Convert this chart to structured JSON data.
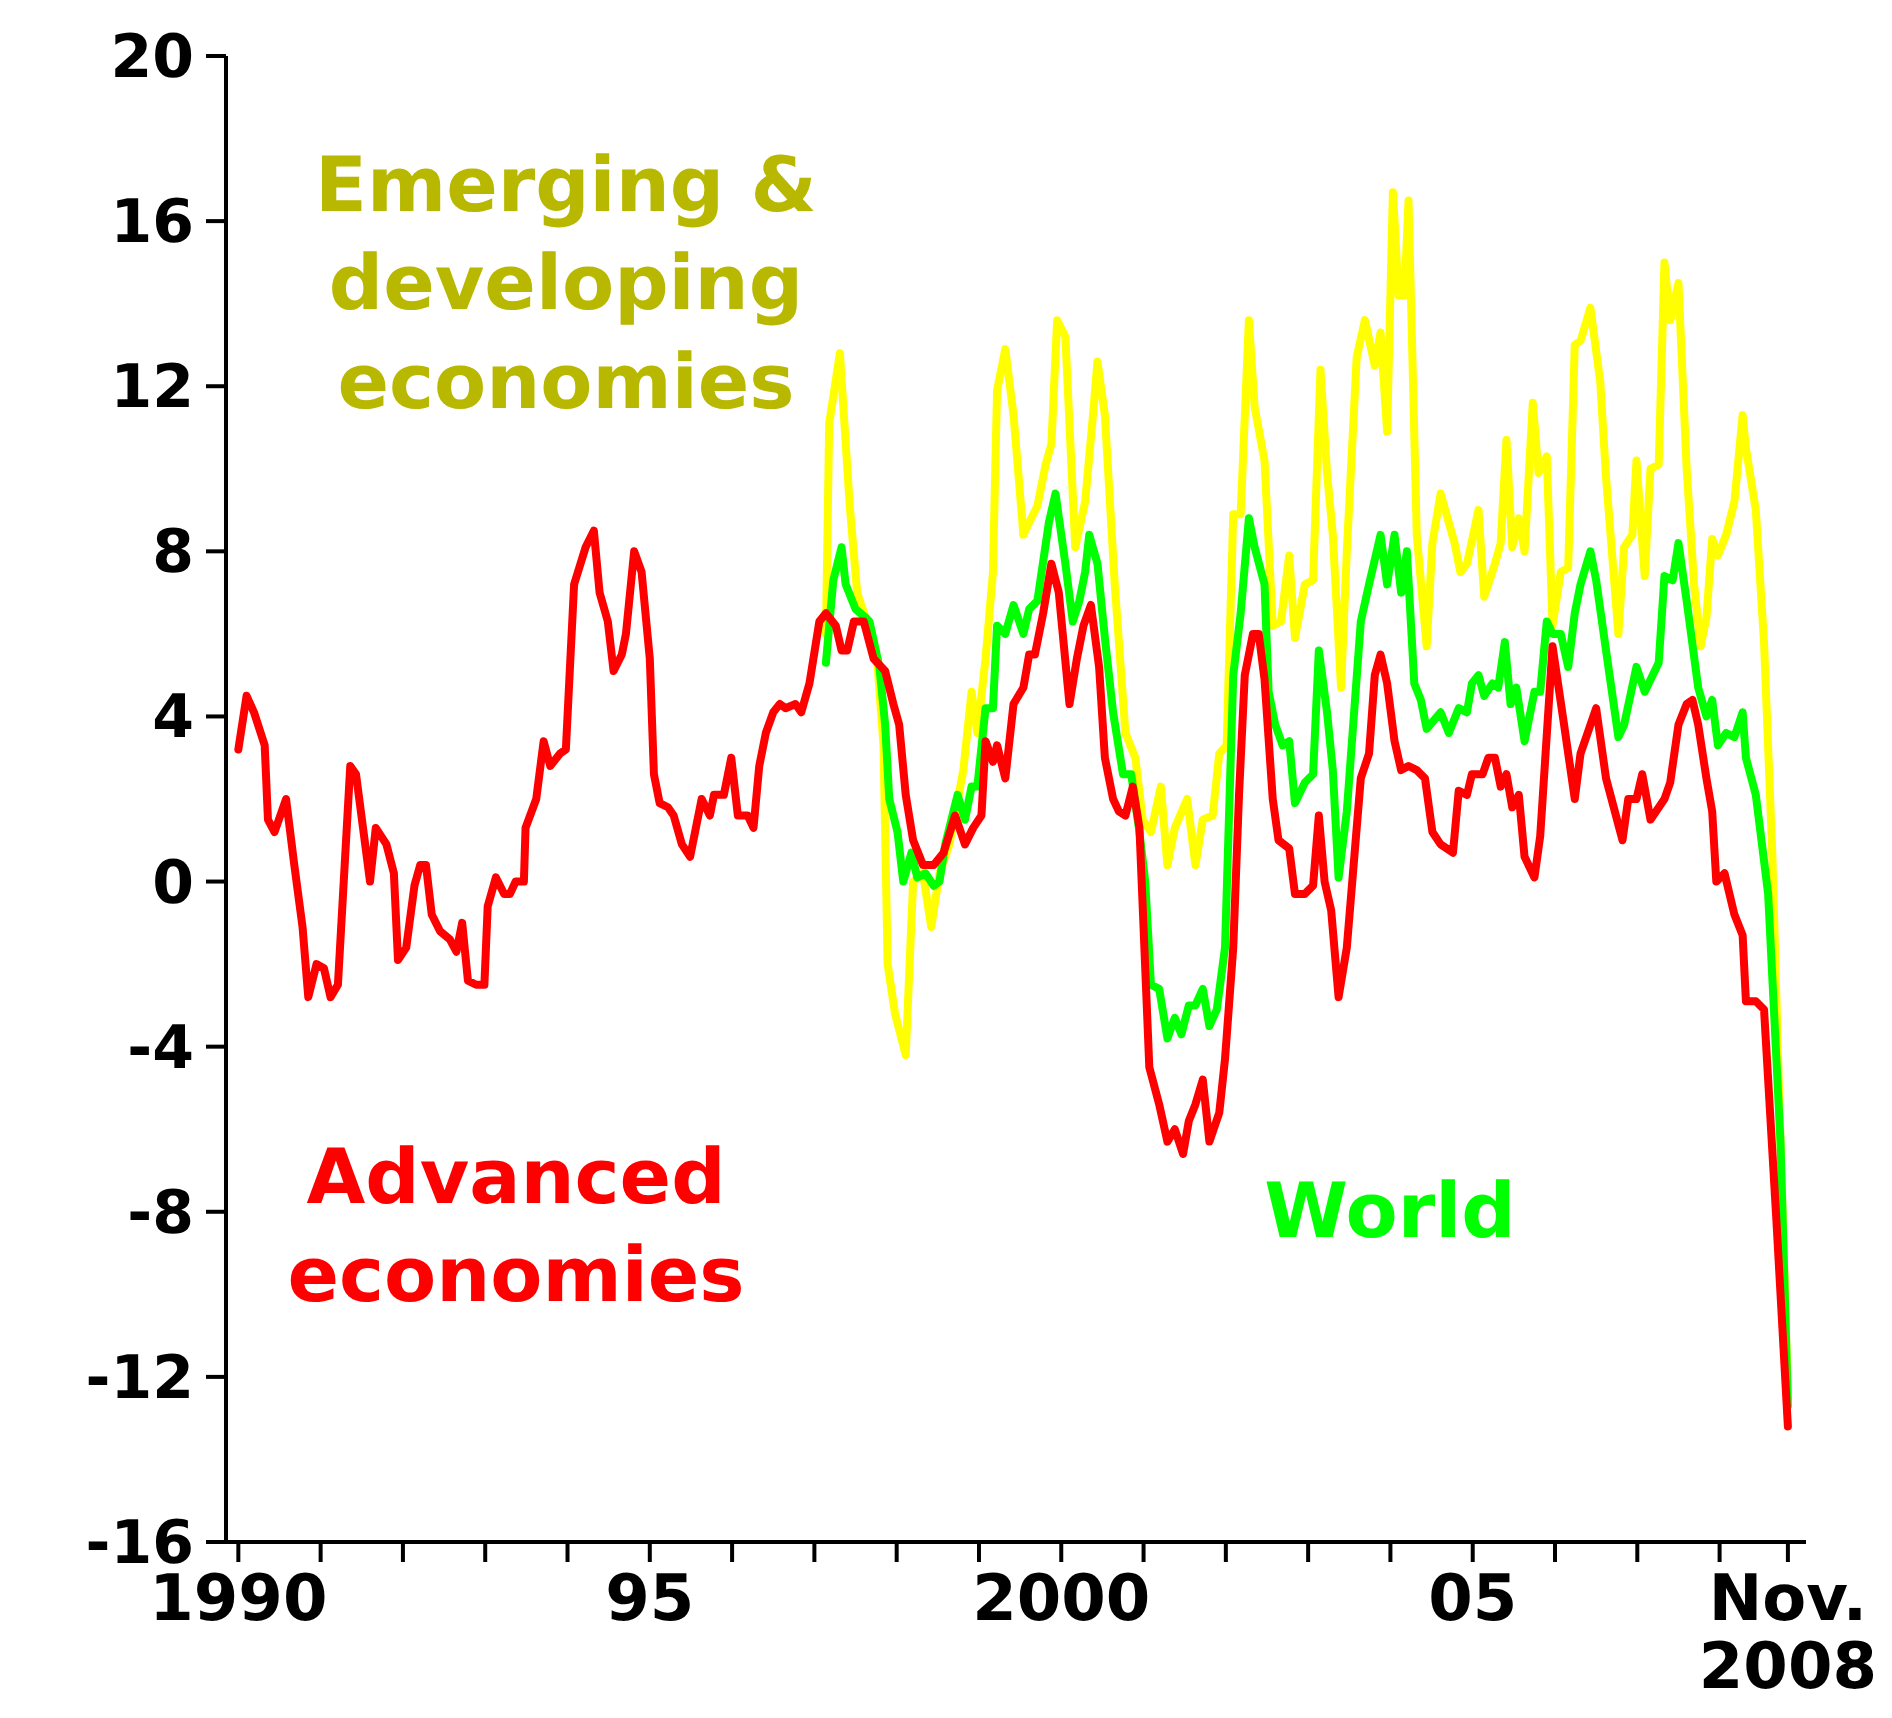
{
  "chart_data": {
    "type": "line",
    "ylim": [
      -16,
      20
    ],
    "yticks": [
      -16,
      -12,
      -8,
      -4,
      0,
      4,
      8,
      12,
      16,
      20
    ],
    "xlim": [
      1989.85,
      2009.05
    ],
    "xticks": [
      {
        "value": 1990,
        "label": "1990"
      },
      {
        "value": 1991,
        "label": null
      },
      {
        "value": 1992,
        "label": null
      },
      {
        "value": 1993,
        "label": null
      },
      {
        "value": 1994,
        "label": null
      },
      {
        "value": 1995,
        "label": "95"
      },
      {
        "value": 1996,
        "label": null
      },
      {
        "value": 1997,
        "label": null
      },
      {
        "value": 1998,
        "label": null
      },
      {
        "value": 1999,
        "label": null
      },
      {
        "value": 2000,
        "label": "2000"
      },
      {
        "value": 2001,
        "label": null
      },
      {
        "value": 2002,
        "label": null
      },
      {
        "value": 2003,
        "label": null
      },
      {
        "value": 2004,
        "label": null
      },
      {
        "value": 2005,
        "label": "05"
      },
      {
        "value": 2006,
        "label": null
      },
      {
        "value": 2007,
        "label": null
      },
      {
        "value": 2008,
        "label": null
      },
      {
        "value": 2008.83,
        "label": "Nov.\n2008"
      }
    ],
    "series": [
      {
        "name": "Emerging & developing economies",
        "color": "#ffff00",
        "x": [
          1997.14,
          1997.18,
          1997.31,
          1997.43,
          1997.52,
          1997.62,
          1997.77,
          1997.84,
          1997.89,
          1997.98,
          1998.11,
          1998.2,
          1998.32,
          1998.42,
          1998.52,
          1998.64,
          1998.81,
          1998.91,
          1998.98,
          1999.08,
          1999.17,
          1999.22,
          1999.32,
          1999.42,
          1999.54,
          1999.61,
          1999.71,
          1999.81,
          1999.88,
          1999.95,
          2000.05,
          2000.17,
          2000.29,
          2000.39,
          2000.44,
          2000.53,
          2000.65,
          2000.78,
          2000.9,
          2000.99,
          2001.09,
          2001.21,
          2001.29,
          2001.38,
          2001.53,
          2001.63,
          2001.72,
          2001.84,
          2001.92,
          2002.01,
          2002.09,
          2002.18,
          2002.28,
          2002.35,
          2002.47,
          2002.57,
          2002.67,
          2002.77,
          2002.84,
          2002.96,
          2003.06,
          2003.15,
          2003.23,
          2003.3,
          2003.4,
          2003.47,
          2003.59,
          2003.69,
          2003.81,
          2003.88,
          2003.96,
          2004.03,
          2004.1,
          2004.17,
          2004.22,
          2004.32,
          2004.44,
          2004.51,
          2004.61,
          2004.78,
          2004.85,
          2004.93,
          2005.07,
          2005.14,
          2005.27,
          2005.34,
          2005.41,
          2005.48,
          2005.56,
          2005.63,
          2005.73,
          2005.8,
          2005.9,
          2005.97,
          2006.07,
          2006.16,
          2006.24,
          2006.31,
          2006.43,
          2006.55,
          2006.62,
          2006.77,
          2006.84,
          2006.94,
          2006.99,
          2007.09,
          2007.16,
          2007.26,
          2007.33,
          2007.4,
          2007.5,
          2007.6,
          2007.69,
          2007.77,
          2007.84,
          2007.91,
          2007.98,
          2008.08,
          2008.18,
          2008.28,
          2008.32,
          2008.44,
          2008.54,
          2008.64,
          2008.74,
          2008.83
        ],
        "values": [
          6.0,
          11.1,
          12.8,
          9.1,
          7.0,
          6.4,
          5.2,
          3.3,
          -2.0,
          -3.2,
          -4.2,
          0.0,
          0.2,
          -1.1,
          0.2,
          0.9,
          2.7,
          4.6,
          3.6,
          5.4,
          7.5,
          11.9,
          12.9,
          11.3,
          8.4,
          8.7,
          9.1,
          10.1,
          10.6,
          13.6,
          13.2,
          8.1,
          9.2,
          11.4,
          12.6,
          11.3,
          7.2,
          3.6,
          3.0,
          1.5,
          1.2,
          2.3,
          0.4,
          1.3,
          2.0,
          0.4,
          1.5,
          1.6,
          3.1,
          3.3,
          8.9,
          8.9,
          13.6,
          11.5,
          10.2,
          6.2,
          6.3,
          7.9,
          5.9,
          7.2,
          7.3,
          12.4,
          9.9,
          8.4,
          4.7,
          8.0,
          12.7,
          13.6,
          12.5,
          13.3,
          10.9,
          16.7,
          14.2,
          14.2,
          16.5,
          8.4,
          5.7,
          8.2,
          9.4,
          8.2,
          7.5,
          7.7,
          9.0,
          6.9,
          7.7,
          8.2,
          10.7,
          8.1,
          8.8,
          8.0,
          11.6,
          9.9,
          10.3,
          6.2,
          7.5,
          7.6,
          13.0,
          13.1,
          13.9,
          12.1,
          9.8,
          6.0,
          8.1,
          8.4,
          10.2,
          7.4,
          10.0,
          10.1,
          15.0,
          13.6,
          14.5,
          10.0,
          7.2,
          5.7,
          6.4,
          8.3,
          7.9,
          8.4,
          9.2,
          11.3,
          10.5,
          9.0,
          5.8,
          0.7,
          -6.3,
          -12.5
        ]
      },
      {
        "name": "World",
        "color": "#00ff00",
        "x": [
          1997.14,
          1997.23,
          1997.33,
          1997.38,
          1997.5,
          1997.62,
          1997.67,
          1997.79,
          1997.86,
          1997.91,
          1998.01,
          1998.08,
          1998.18,
          1998.25,
          1998.35,
          1998.45,
          1998.52,
          1998.59,
          1998.74,
          1998.83,
          1998.91,
          1998.98,
          1999.08,
          1999.17,
          1999.22,
          1999.32,
          1999.42,
          1999.54,
          1999.61,
          1999.71,
          1999.85,
          1999.93,
          2000.05,
          2000.14,
          2000.22,
          2000.29,
          2000.34,
          2000.44,
          2000.53,
          2000.63,
          2000.75,
          2000.85,
          2000.95,
          2001.02,
          2001.09,
          2001.19,
          2001.29,
          2001.38,
          2001.46,
          2001.55,
          2001.63,
          2001.72,
          2001.8,
          2001.89,
          2001.99,
          2002.09,
          2002.18,
          2002.28,
          2002.35,
          2002.47,
          2002.52,
          2002.6,
          2002.69,
          2002.77,
          2002.84,
          2002.96,
          2003.06,
          2003.13,
          2003.23,
          2003.3,
          2003.37,
          2003.47,
          2003.64,
          2003.74,
          2003.88,
          2003.96,
          2004.05,
          2004.13,
          2004.2,
          2004.29,
          2004.37,
          2004.44,
          2004.61,
          2004.71,
          2004.83,
          2004.93,
          2004.99,
          2005.07,
          2005.14,
          2005.24,
          2005.31,
          2005.39,
          2005.46,
          2005.53,
          2005.63,
          2005.75,
          2005.82,
          2005.9,
          2005.97,
          2006.07,
          2006.16,
          2006.24,
          2006.31,
          2006.43,
          2006.5,
          2006.62,
          2006.77,
          2006.84,
          2006.99,
          2007.09,
          2007.26,
          2007.33,
          2007.43,
          2007.5,
          2007.6,
          2007.74,
          2007.84,
          2007.91,
          2007.98,
          2008.08,
          2008.18,
          2008.28,
          2008.32,
          2008.44,
          2008.59,
          2008.74,
          2008.83
        ],
        "values": [
          5.3,
          7.3,
          8.1,
          7.2,
          6.6,
          6.4,
          6.3,
          5.2,
          3.8,
          2.0,
          1.2,
          0.0,
          0.7,
          0.1,
          0.2,
          -0.1,
          0.0,
          0.9,
          2.1,
          1.5,
          2.3,
          2.3,
          4.2,
          4.2,
          6.2,
          6.0,
          6.7,
          6.0,
          6.6,
          6.8,
          8.7,
          9.4,
          7.7,
          6.3,
          6.8,
          7.5,
          8.4,
          7.7,
          5.9,
          4.1,
          2.6,
          2.6,
          1.2,
          0.0,
          -2.5,
          -2.6,
          -3.8,
          -3.3,
          -3.7,
          -3.0,
          -3.0,
          -2.6,
          -3.5,
          -3.1,
          -1.6,
          5.0,
          6.5,
          8.8,
          8.1,
          7.2,
          4.6,
          3.8,
          3.3,
          3.4,
          1.9,
          2.4,
          2.6,
          5.6,
          4.1,
          2.7,
          0.1,
          1.7,
          6.3,
          7.2,
          8.4,
          7.2,
          8.4,
          7.0,
          8.0,
          4.8,
          4.4,
          3.7,
          4.1,
          3.6,
          4.2,
          4.1,
          4.8,
          5.0,
          4.5,
          4.8,
          4.7,
          5.8,
          4.3,
          4.7,
          3.4,
          4.6,
          4.6,
          6.3,
          6.0,
          6.0,
          5.2,
          6.5,
          7.2,
          8.0,
          7.3,
          5.6,
          3.5,
          3.8,
          5.2,
          4.6,
          5.3,
          7.4,
          7.3,
          8.2,
          6.8,
          4.7,
          4.0,
          4.4,
          3.3,
          3.6,
          3.5,
          4.1,
          3.0,
          2.1,
          -0.3,
          -6.3,
          -12.7
        ]
      },
      {
        "name": "Advanced economies",
        "color": "#ff0000",
        "x": [
          1990.0,
          1990.1,
          1990.19,
          1990.32,
          1990.36,
          1990.44,
          1990.58,
          1990.68,
          1990.78,
          1990.85,
          1990.95,
          1991.04,
          1991.12,
          1991.21,
          1991.36,
          1991.43,
          1991.6,
          1991.67,
          1991.8,
          1991.89,
          1991.94,
          1992.04,
          1992.14,
          1992.21,
          1992.28,
          1992.35,
          1992.45,
          1992.57,
          1992.65,
          1992.72,
          1992.79,
          1992.89,
          1992.99,
          1993.03,
          1993.13,
          1993.23,
          1993.3,
          1993.37,
          1993.47,
          1993.49,
          1993.62,
          1993.71,
          1993.79,
          1993.91,
          1993.98,
          1994.08,
          1994.22,
          1994.32,
          1994.39,
          1994.49,
          1994.56,
          1994.66,
          1994.71,
          1994.81,
          1994.9,
          1995.0,
          1995.05,
          1995.12,
          1995.22,
          1995.29,
          1995.39,
          1995.49,
          1995.63,
          1995.73,
          1995.78,
          1995.9,
          1995.99,
          1996.07,
          1996.19,
          1996.26,
          1996.33,
          1996.41,
          1996.5,
          1996.58,
          1996.65,
          1996.77,
          1996.84,
          1996.94,
          1997.06,
          1997.14,
          1997.26,
          1997.33,
          1997.4,
          1997.48,
          1997.6,
          1997.72,
          1997.86,
          1997.96,
          1998.03,
          1998.11,
          1998.2,
          1998.32,
          1998.45,
          1998.57,
          1998.71,
          1998.83,
          1998.93,
          1999.03,
          1999.08,
          1999.17,
          1999.22,
          1999.32,
          1999.42,
          1999.54,
          1999.61,
          1999.68,
          1999.78,
          1999.88,
          1999.97,
          2000.1,
          2000.19,
          2000.27,
          2000.36,
          2000.46,
          2000.53,
          2000.63,
          2000.7,
          2000.78,
          2000.87,
          2000.95,
          2001.07,
          2001.19,
          2001.29,
          2001.38,
          2001.48,
          2001.55,
          2001.63,
          2001.72,
          2001.8,
          2001.92,
          2001.99,
          2002.09,
          2002.16,
          2002.23,
          2002.33,
          2002.4,
          2002.47,
          2002.57,
          2002.64,
          2002.77,
          2002.84,
          2002.96,
          2003.06,
          2003.13,
          2003.2,
          2003.28,
          2003.37,
          2003.47,
          2003.64,
          2003.74,
          2003.81,
          2003.88,
          2003.96,
          2004.05,
          2004.13,
          2004.22,
          2004.32,
          2004.42,
          2004.51,
          2004.61,
          2004.76,
          2004.83,
          2004.93,
          2004.99,
          2005.12,
          2005.19,
          2005.27,
          2005.34,
          2005.41,
          2005.48,
          2005.56,
          2005.63,
          2005.75,
          2005.82,
          2005.97,
          2006.11,
          2006.24,
          2006.31,
          2006.5,
          2006.62,
          2006.82,
          2006.89,
          2006.99,
          2007.06,
          2007.16,
          2007.33,
          2007.4,
          2007.5,
          2007.6,
          2007.67,
          2007.74,
          2007.84,
          2007.91,
          2007.96,
          2008.06,
          2008.18,
          2008.28,
          2008.32,
          2008.44,
          2008.54,
          2008.69,
          2008.83
        ],
        "values": [
          3.2,
          4.5,
          4.1,
          3.3,
          1.5,
          1.2,
          2.0,
          0.4,
          -1.1,
          -2.8,
          -2.0,
          -2.1,
          -2.8,
          -2.5,
          2.8,
          2.6,
          0.0,
          1.3,
          0.9,
          0.2,
          -1.9,
          -1.6,
          -0.1,
          0.4,
          0.4,
          -0.8,
          -1.2,
          -1.4,
          -1.7,
          -1.0,
          -2.4,
          -2.5,
          -2.5,
          -0.6,
          0.1,
          -0.3,
          -0.3,
          0.0,
          0.0,
          1.3,
          2.0,
          3.4,
          2.8,
          3.1,
          3.2,
          7.2,
          8.1,
          8.5,
          7.0,
          6.3,
          5.1,
          5.5,
          6.0,
          8.0,
          7.5,
          5.4,
          2.6,
          1.9,
          1.8,
          1.6,
          0.9,
          0.6,
          2.0,
          1.6,
          2.1,
          2.1,
          3.0,
          1.6,
          1.6,
          1.3,
          2.8,
          3.6,
          4.1,
          4.3,
          4.2,
          4.3,
          4.1,
          4.8,
          6.3,
          6.5,
          6.2,
          5.6,
          5.6,
          6.3,
          6.3,
          5.4,
          5.1,
          4.3,
          3.8,
          2.1,
          1.0,
          0.4,
          0.4,
          0.7,
          1.6,
          0.9,
          1.3,
          1.6,
          3.4,
          2.9,
          3.3,
          2.5,
          4.3,
          4.7,
          5.5,
          5.5,
          6.5,
          7.7,
          7.0,
          4.3,
          5.4,
          6.2,
          6.7,
          5.2,
          3.0,
          2.0,
          1.7,
          1.6,
          2.3,
          1.3,
          -4.5,
          -5.4,
          -6.3,
          -6.0,
          -6.6,
          -5.8,
          -5.4,
          -4.8,
          -6.3,
          -5.6,
          -4.3,
          -1.6,
          2.1,
          5.0,
          6.0,
          6.0,
          4.9,
          2.0,
          1.0,
          0.8,
          -0.3,
          -0.3,
          -0.1,
          1.6,
          0.0,
          -0.7,
          -2.8,
          -1.6,
          2.5,
          3.1,
          5.0,
          5.5,
          4.8,
          3.4,
          2.7,
          2.8,
          2.7,
          2.5,
          1.2,
          0.9,
          0.7,
          2.2,
          2.1,
          2.6,
          2.6,
          3.0,
          3.0,
          2.3,
          2.6,
          1.8,
          2.1,
          0.6,
          0.1,
          1.1,
          5.7,
          3.8,
          2.0,
          3.1,
          4.2,
          2.5,
          1.0,
          2.0,
          2.0,
          2.6,
          1.5,
          2.0,
          2.4,
          3.8,
          4.3,
          4.4,
          3.8,
          2.5,
          1.7,
          0.0,
          0.2,
          -0.8,
          -1.3,
          -2.9,
          -2.9,
          -3.1,
          -8.2,
          -13.2
        ]
      }
    ]
  }
}
